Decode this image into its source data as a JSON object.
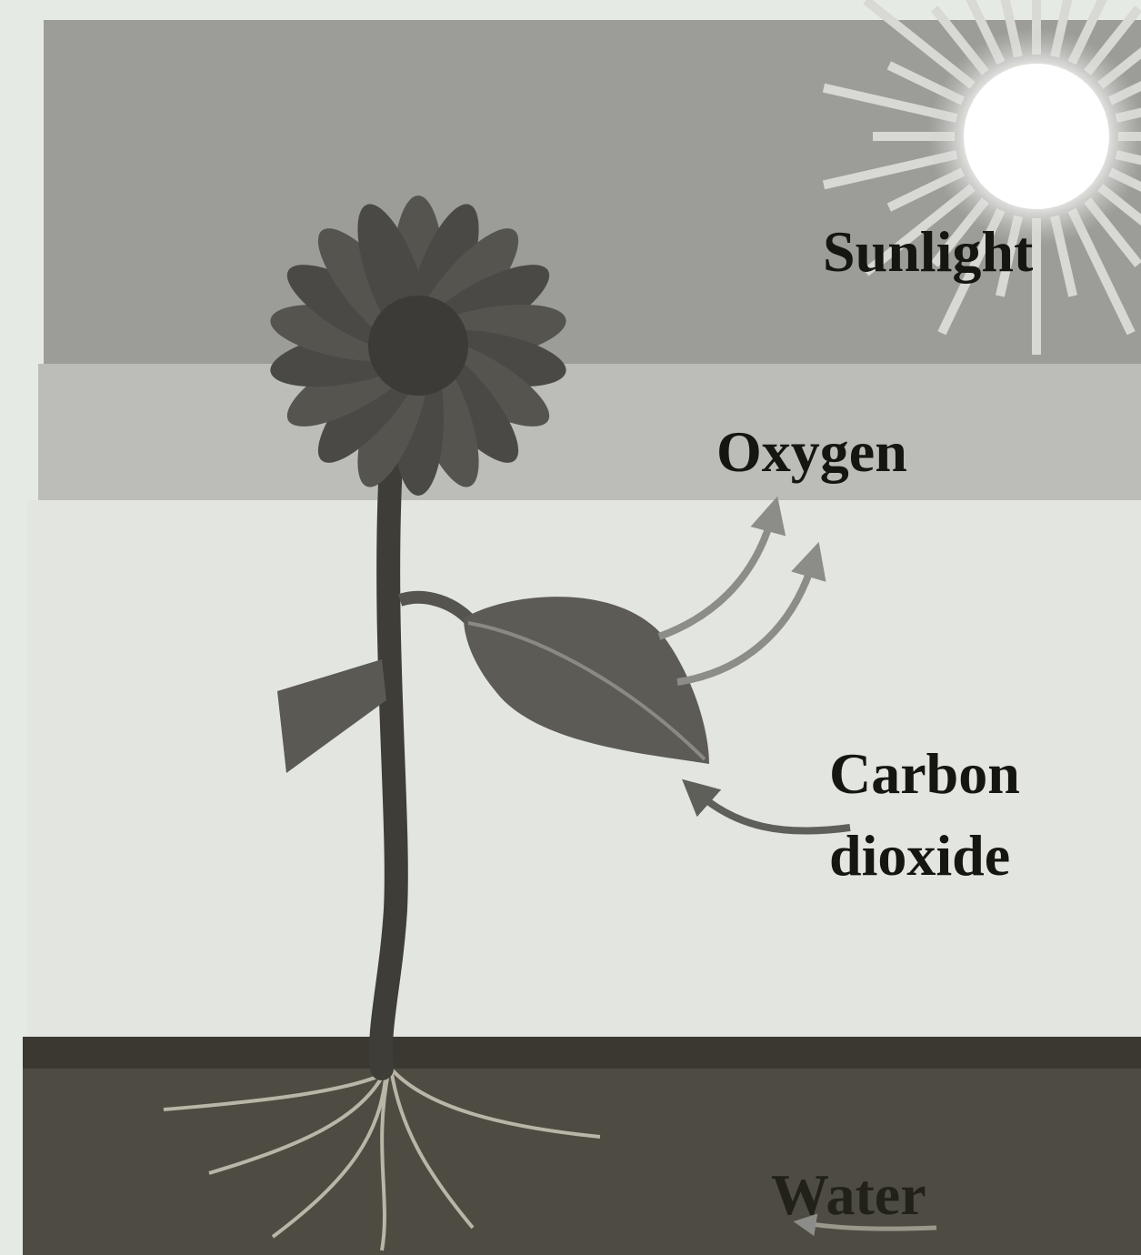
{
  "labels": {
    "sunlight": "Sunlight",
    "oxygen": "Oxygen",
    "carbon_dioxide": [
      "Carbon",
      "dioxide"
    ],
    "water": "Water"
  }
}
